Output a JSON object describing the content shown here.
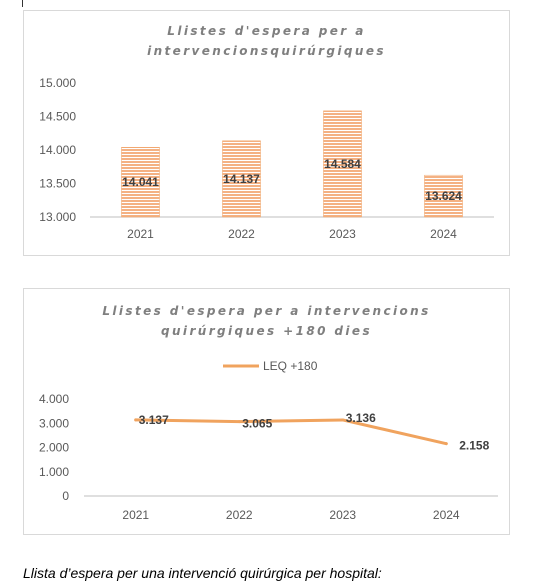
{
  "charts": [
    {
      "title_lines": [
        "Llistes d'espera per a",
        "intervencionsquirúrgiques"
      ]
    },
    {
      "title_lines": [
        "Llistes d'espera per a intervencions",
        "quirúrgiques +180 dies"
      ]
    }
  ],
  "caption": "Llista d’espera per una intervenció quirúrgica per hospital:",
  "colors": {
    "bar": "#f4b183",
    "bar_stripe": "#ffffff",
    "line": "#f0a35e",
    "axis_text": "#595959",
    "label_text": "#404040"
  },
  "chart_data": [
    {
      "type": "bar",
      "categories": [
        "2021",
        "2022",
        "2023",
        "2024"
      ],
      "values": [
        14041,
        14137,
        14584,
        13624
      ],
      "value_labels": [
        "14.041",
        "14.137",
        "14.584",
        "13.624"
      ],
      "yticks": [
        13000,
        13500,
        14000,
        14500,
        15000
      ],
      "ytick_labels": [
        "13.000",
        "13.500",
        "14.000",
        "14.500",
        "15.000"
      ],
      "ylim": [
        13000,
        15000
      ],
      "grid": false,
      "legend": "none"
    },
    {
      "type": "line",
      "categories": [
        "2021",
        "2022",
        "2023",
        "2024"
      ],
      "series": [
        {
          "name": "LEQ +180",
          "values": [
            3137,
            3065,
            3136,
            2158
          ]
        }
      ],
      "value_labels": [
        "3.137",
        "3.065",
        "3.136",
        "2.158"
      ],
      "yticks": [
        0,
        1000,
        2000,
        3000,
        4000
      ],
      "ytick_labels": [
        "0",
        "1.000",
        "2.000",
        "3.000",
        "4.000"
      ],
      "ylim": [
        0,
        4000
      ],
      "grid": false,
      "legend": "top"
    }
  ]
}
